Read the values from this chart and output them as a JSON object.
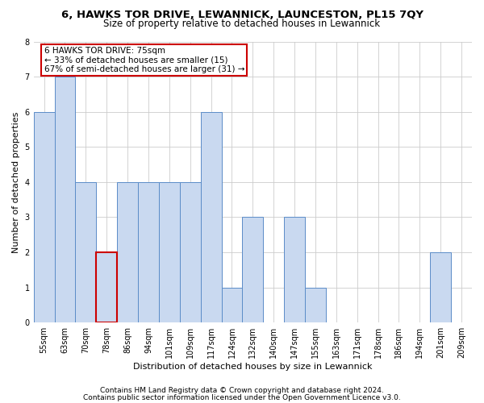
{
  "title": "6, HAWKS TOR DRIVE, LEWANNICK, LAUNCESTON, PL15 7QY",
  "subtitle": "Size of property relative to detached houses in Lewannick",
  "xlabel": "Distribution of detached houses by size in Lewannick",
  "ylabel": "Number of detached properties",
  "categories": [
    "55sqm",
    "63sqm",
    "70sqm",
    "78sqm",
    "86sqm",
    "94sqm",
    "101sqm",
    "109sqm",
    "117sqm",
    "124sqm",
    "132sqm",
    "140sqm",
    "147sqm",
    "155sqm",
    "163sqm",
    "171sqm",
    "178sqm",
    "186sqm",
    "194sqm",
    "201sqm",
    "209sqm"
  ],
  "values": [
    6,
    7,
    4,
    2,
    4,
    4,
    4,
    4,
    6,
    1,
    3,
    0,
    3,
    1,
    0,
    0,
    0,
    0,
    0,
    2,
    0
  ],
  "bar_color": "#c9d9f0",
  "bar_edge_color": "#5b8cc8",
  "highlight_index": 3,
  "highlight_edge_color": "#cc0000",
  "annotation_box_text": "6 HAWKS TOR DRIVE: 75sqm\n← 33% of detached houses are smaller (15)\n67% of semi-detached houses are larger (31) →",
  "annotation_box_color": "#ffffff",
  "annotation_box_edge_color": "#cc0000",
  "ylim": [
    0,
    8
  ],
  "yticks": [
    0,
    1,
    2,
    3,
    4,
    5,
    6,
    7,
    8
  ],
  "grid_color": "#cccccc",
  "background_color": "#ffffff",
  "footer_line1": "Contains HM Land Registry data © Crown copyright and database right 2024.",
  "footer_line2": "Contains public sector information licensed under the Open Government Licence v3.0.",
  "title_fontsize": 9.5,
  "subtitle_fontsize": 8.5,
  "xlabel_fontsize": 8,
  "ylabel_fontsize": 8,
  "tick_fontsize": 7,
  "annotation_fontsize": 7.5,
  "footer_fontsize": 6.5
}
